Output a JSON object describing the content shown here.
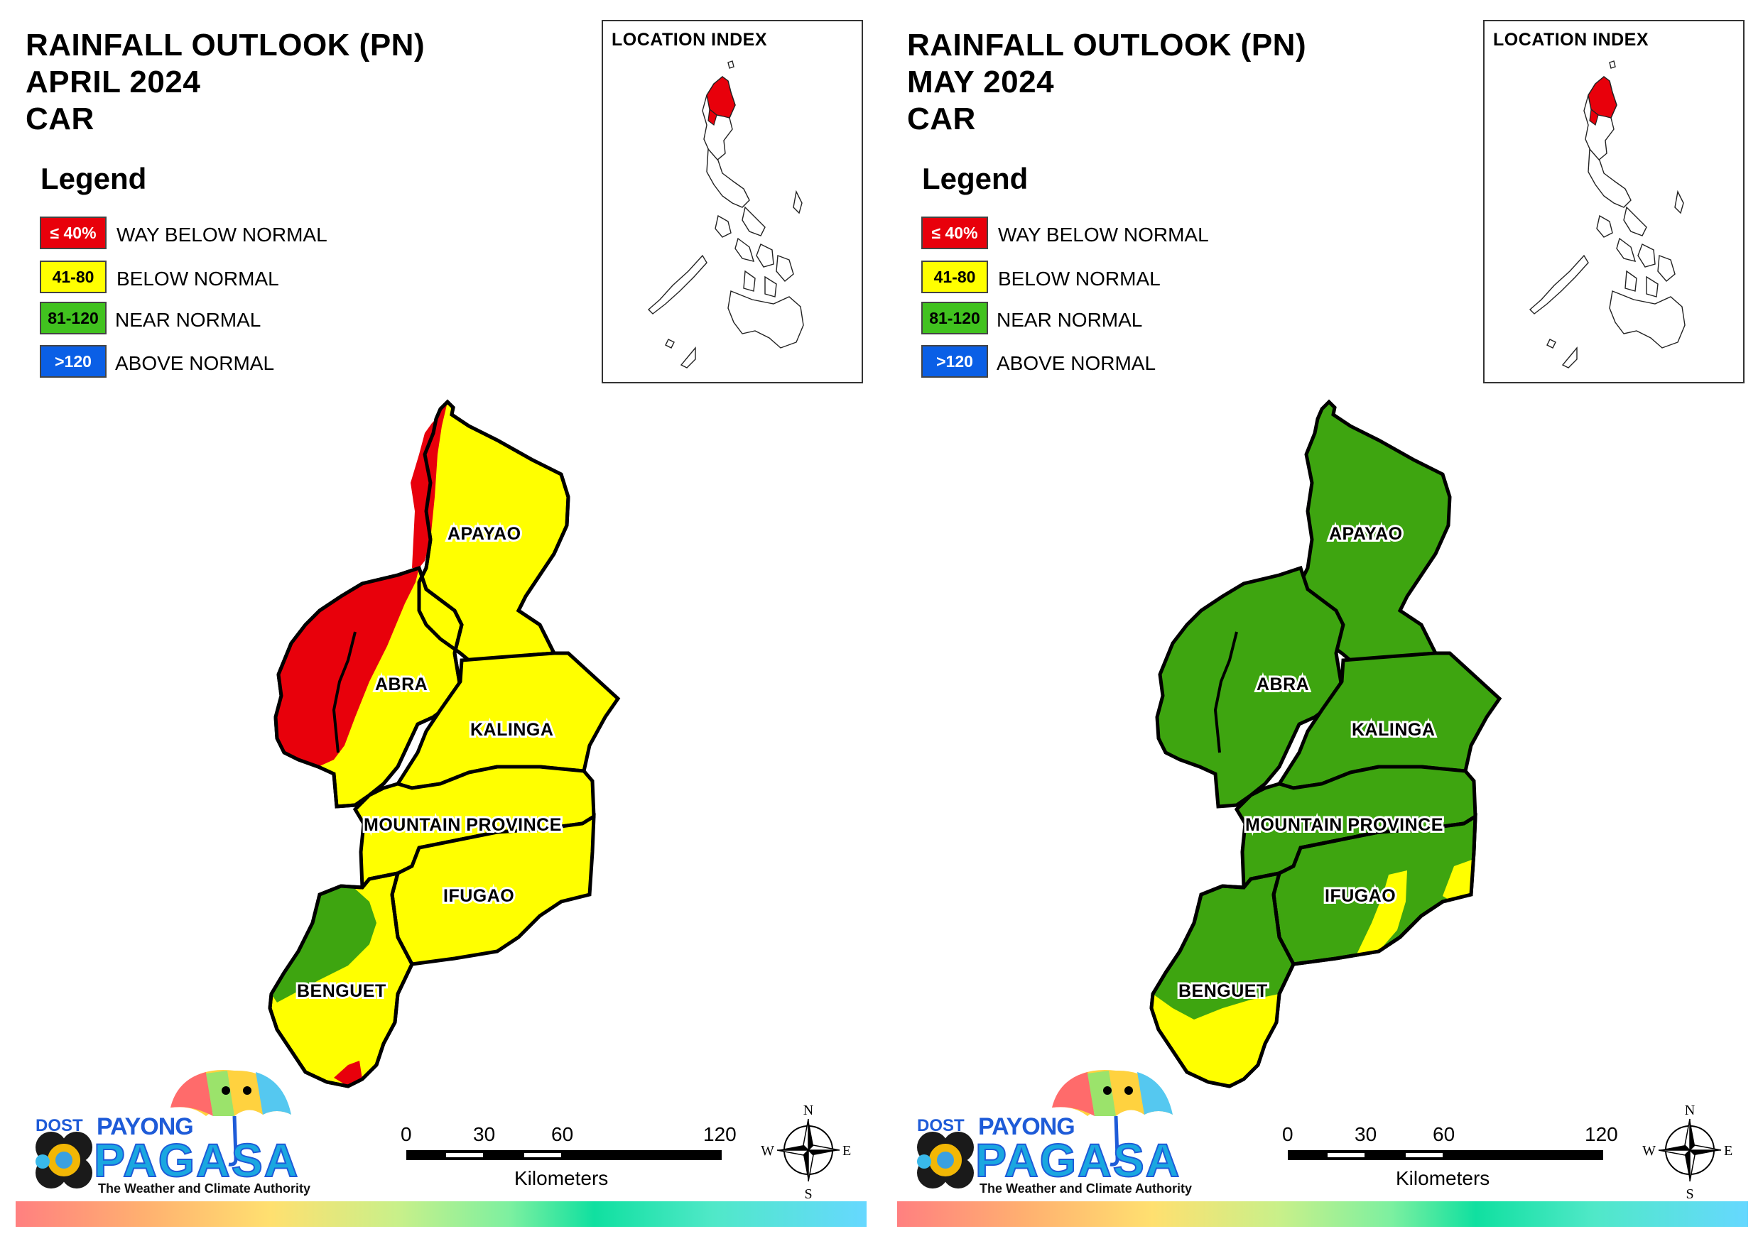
{
  "panels": [
    {
      "title_line1": "RAINFALL OUTLOOK (PN)",
      "title_line2": "APRIL 2024",
      "title_line3": "CAR",
      "legend_title": "Legend",
      "legend": [
        {
          "swatch": "≤ 40%",
          "label": "WAY BELOW NORMAL",
          "color": "#e8000b"
        },
        {
          "swatch": "41-80",
          "label": "BELOW NORMAL",
          "color": "#ffff00"
        },
        {
          "swatch": "81-120",
          "label": "NEAR NORMAL",
          "color": "#41c21f"
        },
        {
          "swatch": ">120",
          "label": "ABOVE NORMAL",
          "color": "#0a5fe6"
        }
      ],
      "index_title": "LOCATION INDEX",
      "provinces": {
        "apayao": "APAYAO",
        "abra": "ABRA",
        "kalinga": "KALINGA",
        "mountain_province": "MOUNTAIN PROVINCE",
        "ifugao": "IFUGAO",
        "benguet": "BENGUET"
      },
      "scale": {
        "t0": "0",
        "t1": "30",
        "t2": "60",
        "t3": "120",
        "unit": "Kilometers"
      },
      "compass": {
        "n": "N",
        "s": "S",
        "e": "E",
        "w": "W"
      },
      "logo": {
        "dost": "DOST",
        "payong": "PAYONG",
        "pagasa": "PAGASA",
        "tagline": "The Weather and Climate Authority"
      }
    },
    {
      "title_line1": "RAINFALL OUTLOOK (PN)",
      "title_line2": "MAY 2024",
      "title_line3": "CAR",
      "legend_title": "Legend",
      "legend": [
        {
          "swatch": "≤ 40%",
          "label": "WAY BELOW NORMAL",
          "color": "#e8000b"
        },
        {
          "swatch": "41-80",
          "label": "BELOW NORMAL",
          "color": "#ffff00"
        },
        {
          "swatch": "81-120",
          "label": "NEAR NORMAL",
          "color": "#41c21f"
        },
        {
          "swatch": ">120",
          "label": "ABOVE NORMAL",
          "color": "#0a5fe6"
        }
      ],
      "index_title": "LOCATION INDEX",
      "provinces": {
        "apayao": "APAYAO",
        "abra": "ABRA",
        "kalinga": "KALINGA",
        "mountain_province": "MOUNTAIN PROVINCE",
        "ifugao": "IFUGAO",
        "benguet": "BENGUET"
      },
      "scale": {
        "t0": "0",
        "t1": "30",
        "t2": "60",
        "t3": "120",
        "unit": "Kilometers"
      },
      "compass": {
        "n": "N",
        "s": "S",
        "e": "E",
        "w": "W"
      },
      "logo": {
        "dost": "DOST",
        "payong": "PAYONG",
        "pagasa": "PAGASA",
        "tagline": "The Weather and Climate Authority"
      }
    }
  ]
}
